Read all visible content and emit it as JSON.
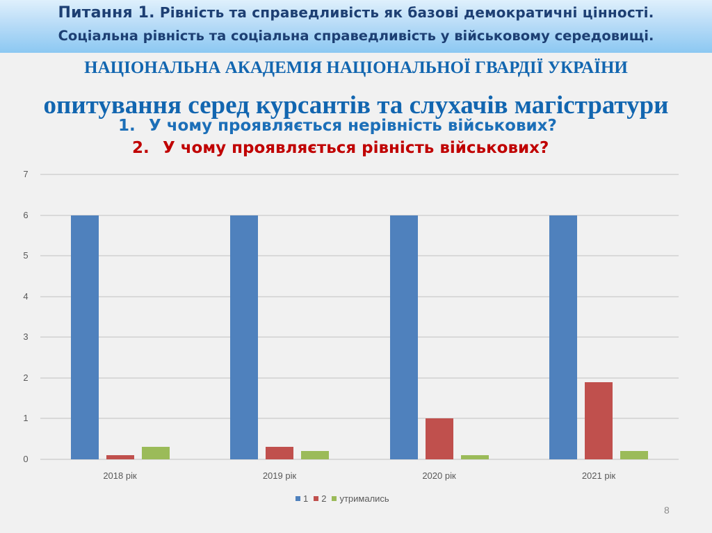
{
  "header": {
    "line1_prefix": "Питання 1.",
    "line1_rest": " Рівність та справедливість як базові демократичні цінності.",
    "line2": "Соціальна рівність та соціальна справедливість у військовому середовищі."
  },
  "academy_title": "НАЦІОНАЛЬНА АКАДЕМІЯ НАЦІОНАЛЬНОЇ ГВАРДІЇ УКРАЇНИ",
  "survey_title": "опитування серед курсантів та слухачів магістратури",
  "questions": [
    {
      "num": "1.",
      "text": "У чому проявляється нерівність військових?",
      "color": "#1c6fb8"
    },
    {
      "num": "2.",
      "text": "У чому проявляється рівність військових?",
      "color": "#c00000"
    }
  ],
  "page_number": "8",
  "colors": {
    "series1": "#4f81bd",
    "series2": "#c0504d",
    "series3": "#9bbb59"
  },
  "chart_data": {
    "type": "bar",
    "title": "",
    "xlabel": "",
    "ylabel": "",
    "categories": [
      "2018 рік",
      "2019 рік",
      "2020 рік",
      "2021 рік"
    ],
    "series": [
      {
        "name": "1",
        "color": "#4f81bd",
        "values": [
          6,
          6,
          6,
          6
        ]
      },
      {
        "name": "2",
        "color": "#c0504d",
        "values": [
          0.1,
          0.3,
          1.0,
          1.9
        ]
      },
      {
        "name": "утримались",
        "color": "#9bbb59",
        "values": [
          0.3,
          0.2,
          0.1,
          0.2
        ]
      }
    ],
    "ylim": [
      0,
      7
    ],
    "yticks": [
      "0",
      "1",
      "2",
      "3",
      "4",
      "5",
      "6",
      "7"
    ],
    "grid": true,
    "legend_position": "bottom"
  }
}
